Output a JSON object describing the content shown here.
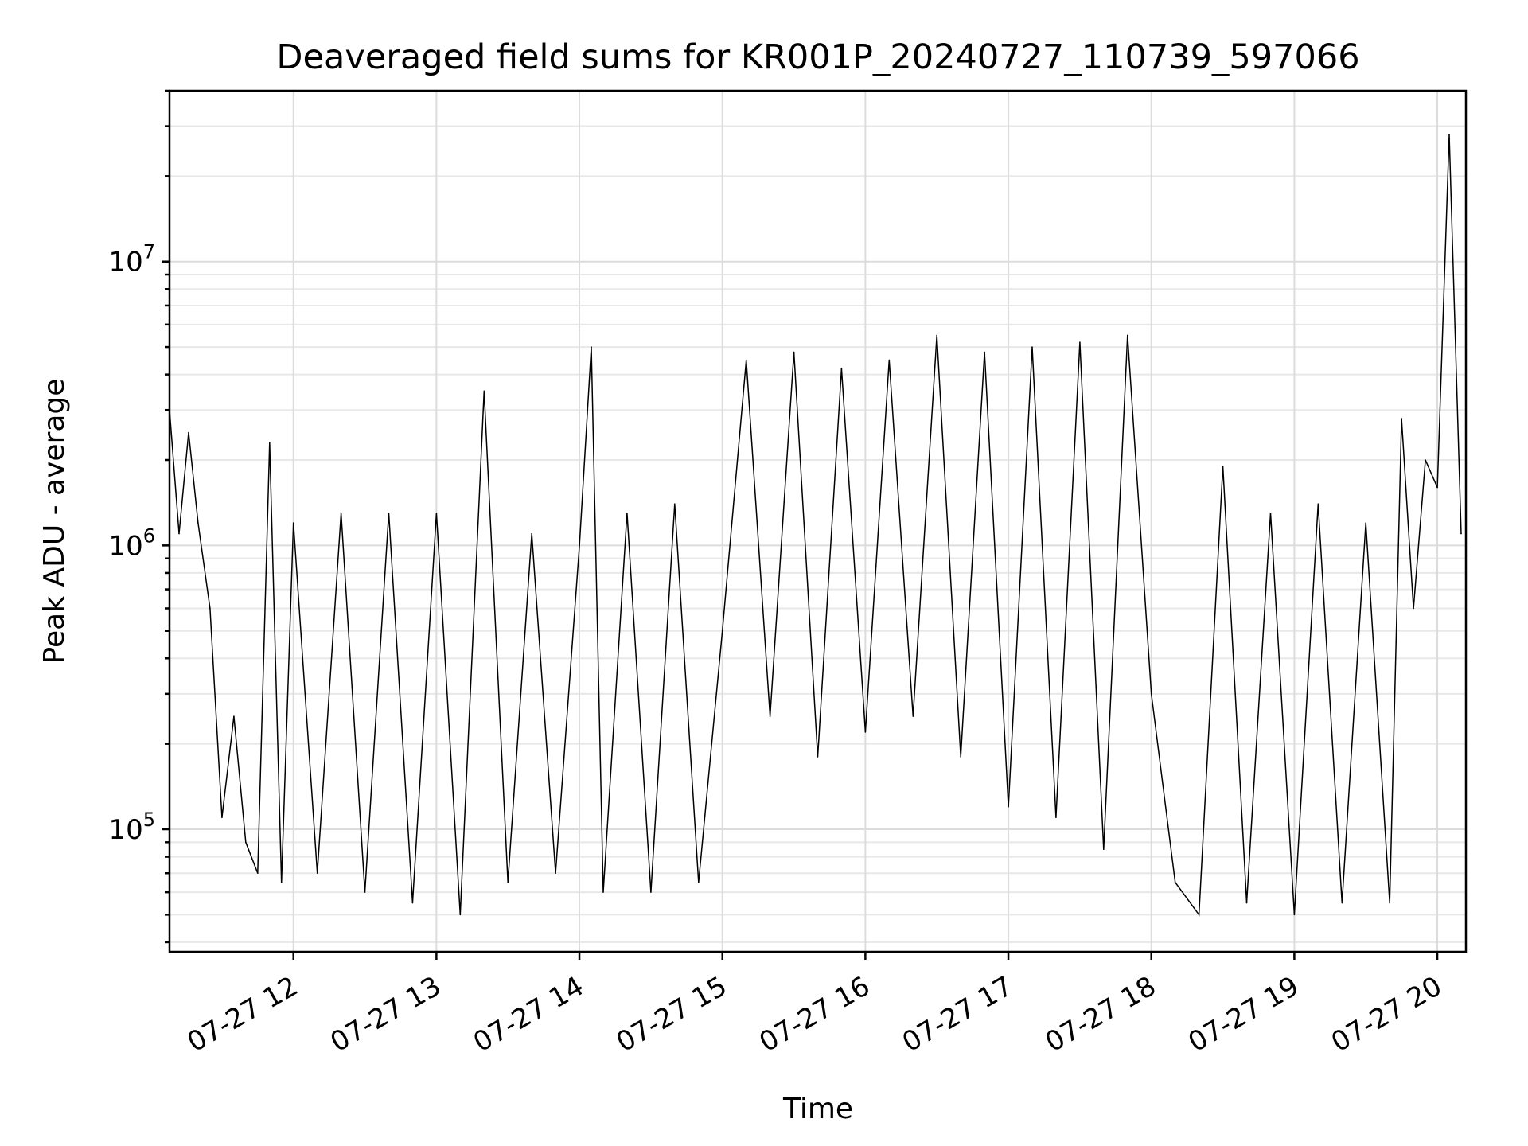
{
  "chart_data": {
    "type": "line",
    "title": "Deaveraged field sums for KR001P_20240727_110739_597066",
    "xlabel": "Time",
    "ylabel": "Peak ADU - average",
    "yscale": "log",
    "ylim": [
      37000,
      40000000
    ],
    "xlim": [
      "2024-07-27 11:08",
      "2024-07-27 20:12"
    ],
    "grid": true,
    "x_ticks": [
      "07-27 12",
      "07-27 13",
      "07-27 14",
      "07-27 15",
      "07-27 16",
      "07-27 17",
      "07-27 18",
      "07-27 19",
      "07-27 20"
    ],
    "y_ticks": [
      {
        "base": "10",
        "exp": "5",
        "value": 100000
      },
      {
        "base": "10",
        "exp": "6",
        "value": 1000000
      },
      {
        "base": "10",
        "exp": "7",
        "value": 10000000
      }
    ],
    "line_color": "#000000",
    "series": [
      {
        "x": [
          "2024-07-27 11:08",
          "2024-07-27 11:12",
          "2024-07-27 11:16",
          "2024-07-27 11:20",
          "2024-07-27 11:25",
          "2024-07-27 11:30",
          "2024-07-27 11:35",
          "2024-07-27 11:40",
          "2024-07-27 11:45",
          "2024-07-27 11:50",
          "2024-07-27 11:55",
          "2024-07-27 12:00",
          "2024-07-27 12:10",
          "2024-07-27 12:20",
          "2024-07-27 12:30",
          "2024-07-27 12:40",
          "2024-07-27 12:50",
          "2024-07-27 13:00",
          "2024-07-27 13:10",
          "2024-07-27 13:20",
          "2024-07-27 13:30",
          "2024-07-27 13:40",
          "2024-07-27 13:50",
          "2024-07-27 14:00",
          "2024-07-27 14:05",
          "2024-07-27 14:10",
          "2024-07-27 14:20",
          "2024-07-27 14:30",
          "2024-07-27 14:40",
          "2024-07-27 14:50",
          "2024-07-27 15:00",
          "2024-07-27 15:10",
          "2024-07-27 15:20",
          "2024-07-27 15:30",
          "2024-07-27 15:40",
          "2024-07-27 15:50",
          "2024-07-27 16:00",
          "2024-07-27 16:10",
          "2024-07-27 16:20",
          "2024-07-27 16:30",
          "2024-07-27 16:40",
          "2024-07-27 16:50",
          "2024-07-27 17:00",
          "2024-07-27 17:10",
          "2024-07-27 17:20",
          "2024-07-27 17:30",
          "2024-07-27 17:40",
          "2024-07-27 17:50",
          "2024-07-27 18:00",
          "2024-07-27 18:10",
          "2024-07-27 18:20",
          "2024-07-27 18:30",
          "2024-07-27 18:40",
          "2024-07-27 18:50",
          "2024-07-27 19:00",
          "2024-07-27 19:10",
          "2024-07-27 19:20",
          "2024-07-27 19:30",
          "2024-07-27 19:40",
          "2024-07-27 19:45",
          "2024-07-27 19:50",
          "2024-07-27 19:55",
          "2024-07-27 20:00",
          "2024-07-27 20:05",
          "2024-07-27 20:10"
        ],
        "y": [
          3000000,
          1100000,
          2500000,
          1200000,
          600000,
          110000,
          250000,
          90000,
          70000,
          2300000,
          65000,
          1200000,
          70000,
          1300000,
          60000,
          1300000,
          55000,
          1300000,
          50000,
          3500000,
          65000,
          1100000,
          70000,
          1000000,
          5000000,
          60000,
          1300000,
          60000,
          1400000,
          65000,
          500000,
          4500000,
          250000,
          4800000,
          180000,
          4200000,
          220000,
          4500000,
          250000,
          5500000,
          180000,
          4800000,
          120000,
          5000000,
          110000,
          5200000,
          85000,
          5500000,
          300000,
          65000,
          50000,
          1900000,
          55000,
          1300000,
          50000,
          1400000,
          55000,
          1200000,
          55000,
          2800000,
          600000,
          2000000,
          1600000,
          28000000,
          1100000
        ]
      }
    ]
  }
}
